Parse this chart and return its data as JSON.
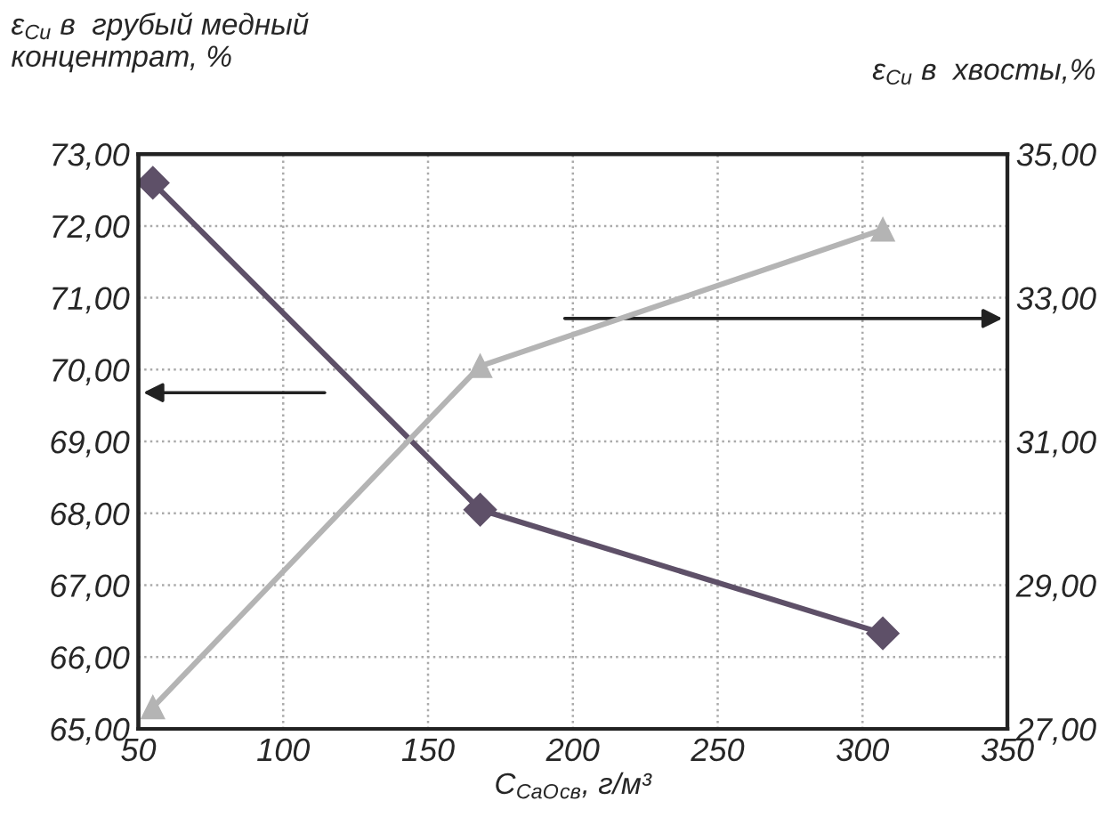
{
  "chart_data": {
    "type": "line",
    "ylabel": "ε$_{Cu}$ в  грубый медный\nконцентрат, %",
    "y2label": "ε$_{Cu}$ в  хвосты,%",
    "xlabel": "C$_{CaO}$$_{св}$, г/м³",
    "x": [
      55,
      168,
      307
    ],
    "series": [
      {
        "color": "#5e5068",
        "values": [
          72.6,
          68.05,
          66.33
        ],
        "marker": "diamond"
      },
      {
        "color": "#b4b4b4",
        "values": [
          27.3,
          32.05,
          33.95
        ],
        "marker": "triangle",
        "axis": "y2"
      }
    ],
    "xlim": [
      50,
      350
    ],
    "xticks": [
      50,
      100,
      150,
      200,
      250,
      300,
      350
    ],
    "ylim": [
      65,
      73
    ],
    "yticks": [
      {
        "value": 65,
        "label": "65,00"
      },
      {
        "value": 66,
        "label": "66,00"
      },
      {
        "value": 67,
        "label": "67,00"
      },
      {
        "value": 68,
        "label": "68,00"
      },
      {
        "value": 69,
        "label": "69,00"
      },
      {
        "value": 70,
        "label": "70,00"
      },
      {
        "value": 71,
        "label": "71,00"
      },
      {
        "value": 72,
        "label": "72,00"
      },
      {
        "value": 73,
        "label": "73,00"
      }
    ],
    "y2lim": [
      27,
      35
    ],
    "y2ticks": [
      {
        "value": 27,
        "label": "27,00"
      },
      {
        "value": 29,
        "label": "29,00"
      },
      {
        "value": 31,
        "label": "31,00"
      },
      {
        "value": 33,
        "label": "33,00"
      },
      {
        "value": 35,
        "label": "35,00"
      }
    ],
    "grid": true
  }
}
